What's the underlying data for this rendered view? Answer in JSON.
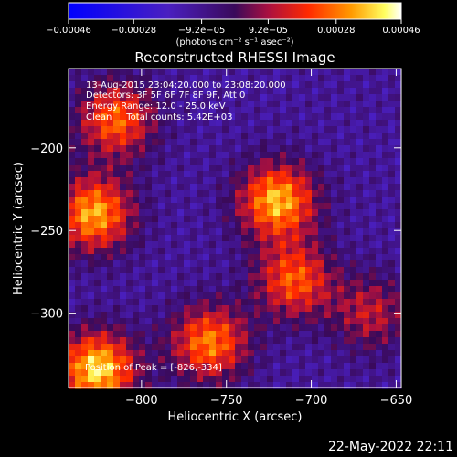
{
  "chart_data": {
    "type": "heatmap",
    "title": "Reconstructed RHESSI Image",
    "xlabel": "Heliocentric X (arcsec)",
    "ylabel": "Heliocentric Y (arcsec)",
    "xlim": [
      -843,
      -647
    ],
    "ylim": [
      -345,
      -152
    ],
    "xticks": [
      -800,
      -750,
      -700,
      -650
    ],
    "xtick_labels": [
      "−800",
      "−750",
      "−700",
      "−650"
    ],
    "yticks": [
      -200,
      -250,
      -300
    ],
    "ytick_labels": [
      "−200",
      "−250",
      "−300"
    ],
    "colorbar": {
      "range": [
        -0.00046,
        0.00046
      ],
      "colormap": "blue-purple-red-yellow-white",
      "ticks": [
        -0.00046,
        -0.00028,
        -9.2e-05,
        9.2e-05,
        0.00028,
        0.00046
      ],
      "tick_labels": [
        "−0.00046",
        "−0.00028",
        "−9.2e−05",
        "9.2e−05",
        "0.00028",
        "0.00046"
      ],
      "units_label": "(photons cm⁻² s⁻¹ asec⁻²)"
    },
    "sources": [
      {
        "x": -826,
        "y": -334,
        "peak": 1.0
      },
      {
        "x": -815,
        "y": -183,
        "peak": 0.72
      },
      {
        "x": -828,
        "y": -240,
        "peak": 0.88
      },
      {
        "x": -720,
        "y": -232,
        "peak": 0.92
      },
      {
        "x": -710,
        "y": -280,
        "peak": 0.7
      },
      {
        "x": -760,
        "y": -318,
        "peak": 0.78
      },
      {
        "x": -665,
        "y": -300,
        "peak": 0.45
      }
    ],
    "annotations": {
      "time_range": "13-Aug-2015 23:04:20.000 to 23:08:20.000",
      "detectors": "Detectors: 3F 5F 6F 7F 8F 9F, Att 0",
      "energy": "Energy Range: 12.0 - 25.0 keV",
      "clean": "Clean     Total counts: 5.42E+03",
      "peak": "Position of Peak = [-826,-334]"
    },
    "grid": false
  },
  "footer": {
    "date": "22-May-2022 22:11"
  }
}
